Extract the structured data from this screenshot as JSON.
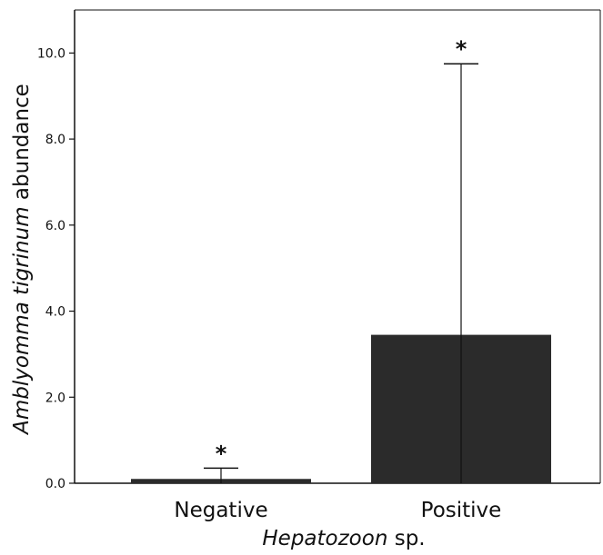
{
  "chart_data": {
    "type": "bar",
    "categories": [
      "Negative",
      "Positive"
    ],
    "values": [
      0.1,
      3.45
    ],
    "error_upper": [
      0.35,
      9.75
    ],
    "annotations": [
      "*",
      "*"
    ],
    "xlabel_italic": "Hepatozoon",
    "xlabel_rest": " sp.",
    "ylabel_italic": "Amblyomma tigrinum",
    "ylabel_rest": " abundance",
    "ylim": [
      0,
      11
    ],
    "yticks": [
      0,
      2,
      4,
      6,
      8,
      10
    ],
    "ytick_labels": [
      "0.0",
      "2.0",
      "4.0",
      "6.0",
      "8.0",
      "10.0"
    ],
    "bar_color": "#2b2b2b",
    "grid": false
  }
}
